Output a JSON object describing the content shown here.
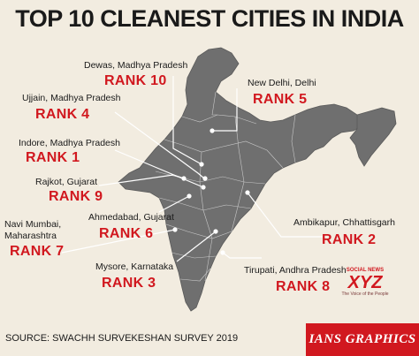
{
  "title": "TOP 10 CLEANEST CITIES IN INDIA",
  "source": "SOURCE: SWACHH SURVEKESHAN SURVEY 2019",
  "credit": "IANS GRAPHICS",
  "watermark": {
    "line1": "SOCIAL NEWS",
    "line2": "XYZ",
    "line3": "The Voice of the People"
  },
  "cities": [
    {
      "name": "Dewas, Madhya Pradesh",
      "rank": "RANK 10"
    },
    {
      "name": "New Delhi, Delhi",
      "rank": "RANK 5"
    },
    {
      "name": "Ujjain, Madhya Pradesh",
      "rank": "RANK 4"
    },
    {
      "name": "Indore, Madhya Pradesh",
      "rank": "RANK 1"
    },
    {
      "name": "Rajkot, Gujarat",
      "rank": "RANK 9"
    },
    {
      "name": "Ahmedabad, Gujarat",
      "rank": "RANK 6"
    },
    {
      "name": "Ambikapur, Chhattisgarh",
      "rank": "RANK 2"
    },
    {
      "name": "Navi Mumbai,\nMaharashtra",
      "rank": "RANK 7"
    },
    {
      "name": "Mysore, Karnataka",
      "rank": "RANK 3"
    },
    {
      "name": "Tirupati, Andhra Pradesh",
      "rank": "RANK 8"
    }
  ],
  "colors": {
    "background": "#f2ece0",
    "map": "#6f6f6f",
    "accent": "#d1181f",
    "border": "#d8d8d8"
  }
}
